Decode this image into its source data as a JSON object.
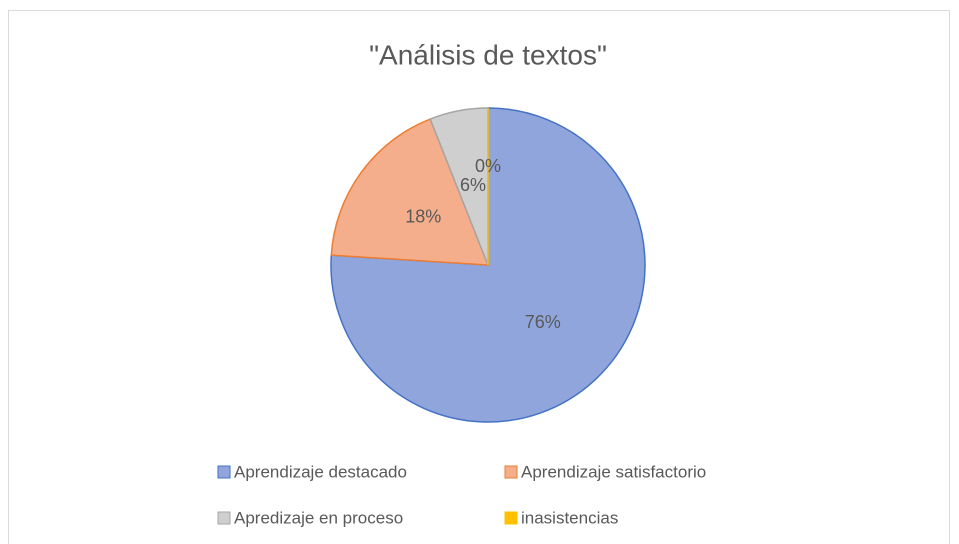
{
  "chart_data": {
    "type": "pie",
    "title": "\"Análisis de textos\"",
    "categories": [
      "Aprendizaje destacado",
      "Aprendizaje satisfactorio",
      "Apredizaje en proceso",
      "inasistencias"
    ],
    "values": [
      76,
      18,
      6,
      0
    ],
    "value_labels": [
      "76%",
      "18%",
      "6%",
      "0%"
    ],
    "colors": [
      "#8fa5dc",
      "#f5ae8c",
      "#cfcfcf",
      "#ffc000"
    ],
    "edge_colors": [
      "#4472c4",
      "#ed7d31",
      "#a5a5a5",
      "#ffc000"
    ],
    "legend": "bottom"
  }
}
